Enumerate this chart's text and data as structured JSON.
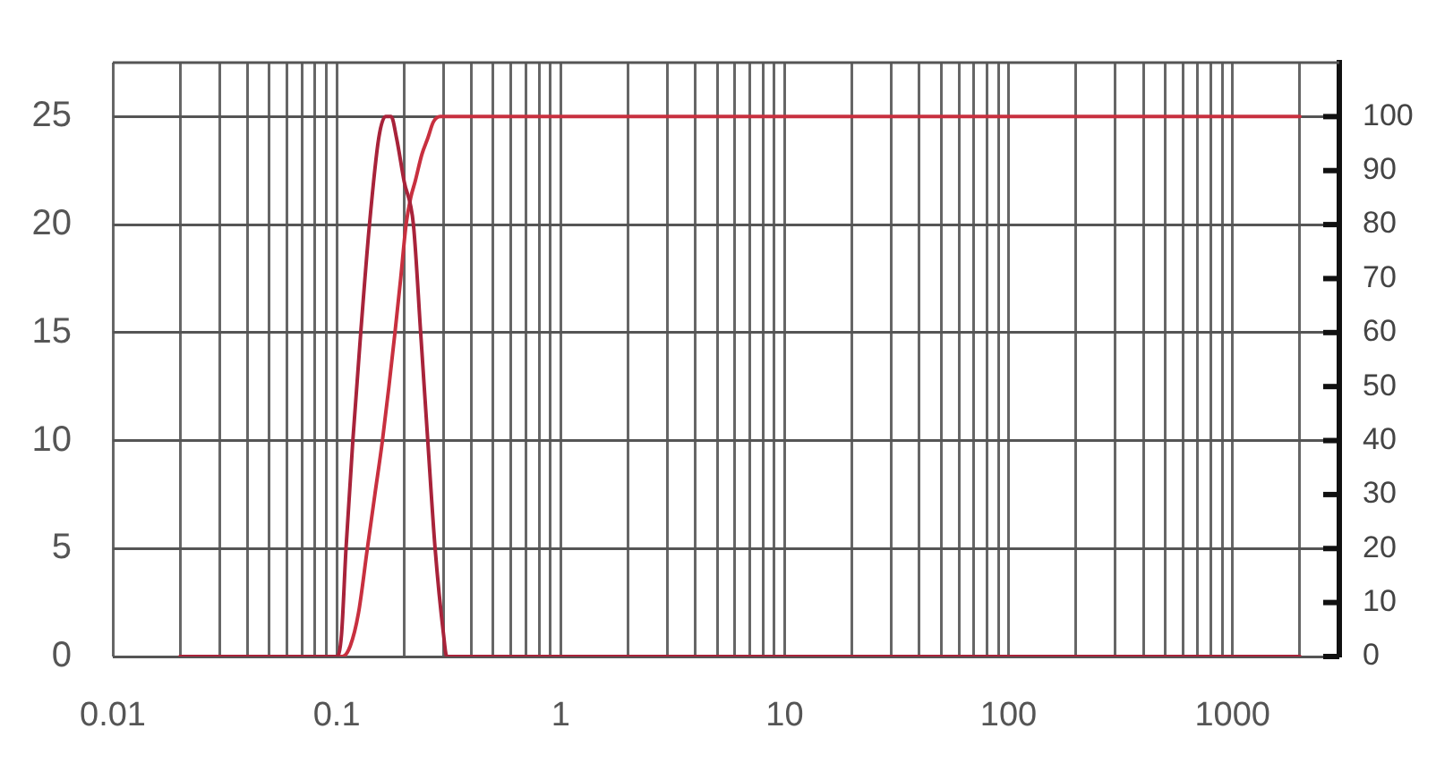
{
  "chart_data": {
    "type": "line",
    "log": "x",
    "grid": true,
    "marker": "none",
    "xlim": [
      0.01,
      3000
    ],
    "xticks": [
      0.01,
      {
        "value": 0.02,
        "label": null
      },
      {
        "value": 0.03,
        "label": null
      },
      {
        "value": 0.04,
        "label": null
      },
      {
        "value": 0.05,
        "label": null
      },
      {
        "value": 0.06,
        "label": null
      },
      {
        "value": 0.07,
        "label": null
      },
      {
        "value": 0.08,
        "label": null
      },
      {
        "value": 0.09,
        "label": null
      },
      0.1,
      {
        "value": 0.2,
        "label": null
      },
      {
        "value": 0.3,
        "label": null
      },
      {
        "value": 0.4,
        "label": null
      },
      {
        "value": 0.5,
        "label": null
      },
      {
        "value": 0.6,
        "label": null
      },
      {
        "value": 0.7,
        "label": null
      },
      {
        "value": 0.8,
        "label": null
      },
      {
        "value": 0.9,
        "label": null
      },
      1,
      {
        "value": 2,
        "label": null
      },
      {
        "value": 3,
        "label": null
      },
      {
        "value": 4,
        "label": null
      },
      {
        "value": 5,
        "label": null
      },
      {
        "value": 6,
        "label": null
      },
      {
        "value": 7,
        "label": null
      },
      {
        "value": 8,
        "label": null
      },
      {
        "value": 9,
        "label": null
      },
      10,
      {
        "value": 20,
        "label": null
      },
      {
        "value": 30,
        "label": null
      },
      {
        "value": 40,
        "label": null
      },
      {
        "value": 50,
        "label": null
      },
      {
        "value": 60,
        "label": null
      },
      {
        "value": 70,
        "label": null
      },
      {
        "value": 80,
        "label": null
      },
      {
        "value": 90,
        "label": null
      },
      100,
      {
        "value": 200,
        "label": null
      },
      {
        "value": 300,
        "label": null
      },
      {
        "value": 400,
        "label": null
      },
      {
        "value": 500,
        "label": null
      },
      {
        "value": 600,
        "label": null
      },
      {
        "value": 700,
        "label": null
      },
      {
        "value": 800,
        "label": null
      },
      {
        "value": 900,
        "label": null
      },
      1000,
      {
        "value": 2000,
        "label": null
      }
    ],
    "ylim": [
      0,
      27.5
    ],
    "yticks": [
      0,
      5,
      10,
      15,
      20,
      25
    ],
    "y2lim": [
      0,
      110
    ],
    "y2ticks": [
      0,
      10,
      20,
      30,
      40,
      50,
      60,
      70,
      80,
      90,
      100
    ],
    "series": [
      {
        "color": "#a8233a",
        "x": [
          0.02,
          0.05,
          0.1,
          0.105,
          0.11,
          0.118,
          0.128,
          0.14,
          0.154,
          0.165,
          0.175,
          0.185,
          0.2,
          0.22,
          0.237,
          0.255,
          0.275,
          0.3,
          0.31,
          1,
          2000
        ],
        "values": [
          0,
          0,
          0,
          1,
          5,
          10,
          15,
          20,
          24,
          25,
          25,
          24,
          22,
          20,
          15,
          10,
          5,
          1,
          0,
          0,
          0
        ]
      },
      {
        "color": "#c8303f",
        "axis": "y2",
        "x": [
          0.02,
          0.1,
          0.106,
          0.115,
          0.125,
          0.137,
          0.148,
          0.16,
          0.171,
          0.182,
          0.193,
          0.204,
          0.214,
          0.224,
          0.24,
          0.255,
          0.27,
          0.29,
          2000
        ],
        "values": [
          0,
          0,
          0,
          2,
          8,
          20,
          30,
          40,
          50,
          60,
          70,
          80,
          85,
          88,
          93,
          96,
          99,
          100,
          100
        ]
      }
    ]
  }
}
